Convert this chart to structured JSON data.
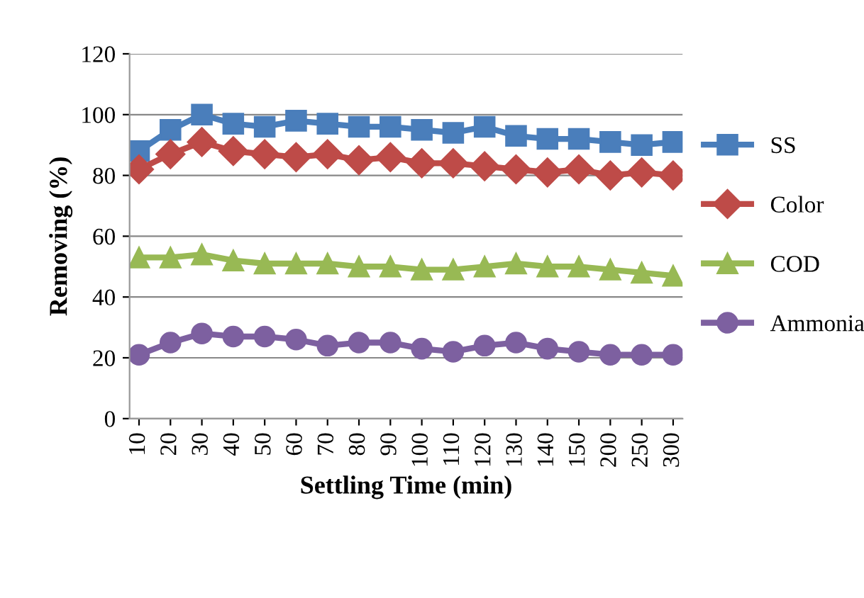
{
  "chart_data": {
    "type": "line",
    "xlabel": "Settling Time (min)",
    "ylabel": "Removing (%)",
    "categories": [
      "10",
      "20",
      "30",
      "40",
      "50",
      "60",
      "70",
      "80",
      "90",
      "100",
      "110",
      "120",
      "130",
      "140",
      "150",
      "200",
      "250",
      "300"
    ],
    "series": [
      {
        "name": "SS",
        "color": "#4a7ebb",
        "marker": "square",
        "values": [
          88,
          95,
          100,
          97,
          96,
          98,
          97,
          96,
          96,
          95,
          94,
          96,
          93,
          92,
          92,
          91,
          90,
          91
        ]
      },
      {
        "name": "Color",
        "color": "#be4b48",
        "marker": "diamond",
        "values": [
          82,
          87,
          91,
          88,
          87,
          86,
          87,
          85,
          86,
          84,
          84,
          83,
          82,
          81,
          82,
          80,
          81,
          80
        ]
      },
      {
        "name": "COD",
        "color": "#98b954",
        "marker": "triangle",
        "values": [
          53,
          53,
          54,
          52,
          51,
          51,
          51,
          50,
          50,
          49,
          49,
          50,
          51,
          50,
          50,
          49,
          48,
          47
        ]
      },
      {
        "name": "Ammonia",
        "color": "#7d60a0",
        "marker": "circle",
        "values": [
          21,
          25,
          28,
          27,
          27,
          26,
          24,
          25,
          25,
          23,
          22,
          24,
          25,
          23,
          22,
          21,
          21,
          21
        ]
      }
    ],
    "ylim": [
      0,
      120
    ],
    "yticks": [
      0,
      20,
      40,
      60,
      80,
      100,
      120
    ],
    "grid": "y",
    "legend": "right"
  }
}
